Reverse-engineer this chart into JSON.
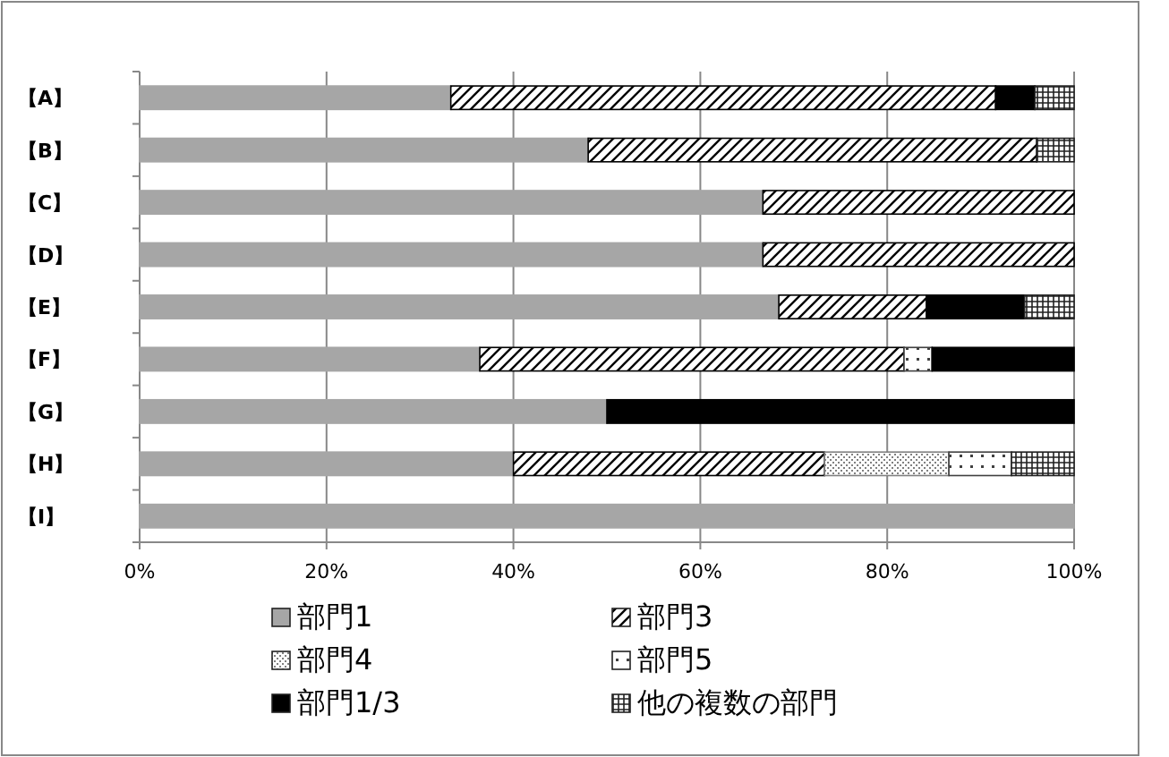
{
  "chart_data": {
    "type": "bar",
    "orientation": "horizontal",
    "stacked": true,
    "categories": [
      "【A】",
      "【B】",
      "【C】",
      "【D】",
      "【E】",
      "【F】",
      "【G】",
      "【H】",
      "【I】"
    ],
    "series": [
      {
        "name": "部門1",
        "color": "#a6a6a6",
        "values": [
          33.3,
          48.0,
          66.7,
          66.7,
          68.4,
          36.4,
          50.0,
          40.0,
          100
        ]
      },
      {
        "name": "部門3",
        "color": "#000000",
        "values": [
          58.3,
          48.0,
          33.3,
          33.3,
          15.8,
          45.4,
          0,
          33.3,
          0
        ]
      },
      {
        "name": "部門4",
        "color": "#808080",
        "values": [
          0,
          0,
          0,
          0,
          0,
          0,
          0,
          13.3,
          0
        ]
      },
      {
        "name": "部門5",
        "color": "#404040",
        "values": [
          0,
          0,
          0,
          0,
          0,
          3.0,
          0,
          6.7,
          0
        ]
      },
      {
        "name": "部門1/3",
        "color": "#000000",
        "values": [
          4.2,
          0,
          0,
          0,
          10.5,
          15.2,
          50.0,
          0,
          0
        ]
      },
      {
        "name": "他の複数の部門",
        "color": "#202020",
        "values": [
          4.2,
          4.0,
          0,
          0,
          5.3,
          0,
          0,
          6.7,
          0
        ]
      }
    ],
    "xlim": [
      0,
      100
    ],
    "xticks": [
      {
        "value": 0,
        "label": "0%"
      },
      {
        "value": 20,
        "label": "20%"
      },
      {
        "value": 40,
        "label": "40%"
      },
      {
        "value": 60,
        "label": "60%"
      },
      {
        "value": 80,
        "label": "80%"
      },
      {
        "value": 100,
        "label": "100%"
      }
    ],
    "grid": "x",
    "legend": "bottom"
  }
}
